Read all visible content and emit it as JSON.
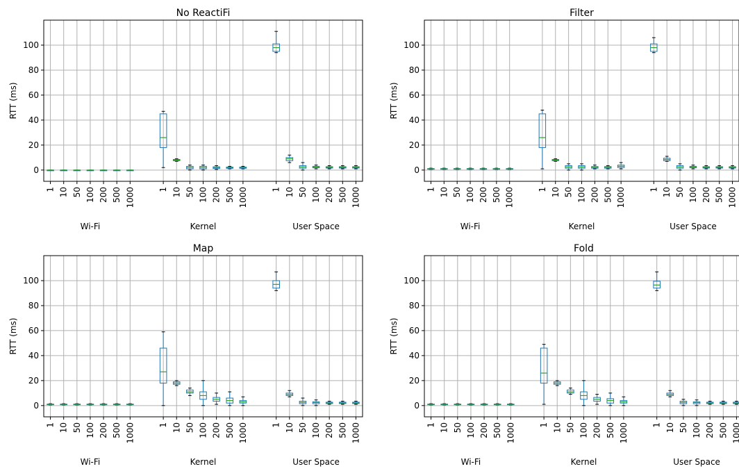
{
  "chart_data": [
    {
      "type": "box",
      "title": "No ReactiFi",
      "ylabel": "RTT (ms)",
      "ylim": [
        -9,
        120
      ],
      "yticks": [
        0,
        20,
        40,
        60,
        80,
        100
      ],
      "grid": true,
      "categories": [
        "1",
        "10",
        "50",
        "100",
        "200",
        "500",
        "1000",
        "1",
        "10",
        "50",
        "100",
        "200",
        "500",
        "1000",
        "1",
        "10",
        "50",
        "100",
        "200",
        "500",
        "1000"
      ],
      "groups": [
        {
          "label": "Wi-Fi",
          "start": 0,
          "end": 6
        },
        {
          "label": "Kernel",
          "start": 7,
          "end": 13
        },
        {
          "label": "User Space",
          "start": 14,
          "end": 20
        }
      ],
      "boxes": [
        {
          "min": 0,
          "q1": 0,
          "median": 0,
          "q3": 0,
          "max": 0
        },
        {
          "min": 0,
          "q1": 0,
          "median": 0,
          "q3": 0,
          "max": 0
        },
        {
          "min": 0,
          "q1": 0,
          "median": 0,
          "q3": 0,
          "max": 0
        },
        {
          "min": 0,
          "q1": 0,
          "median": 0,
          "q3": 0,
          "max": 0
        },
        {
          "min": 0,
          "q1": 0,
          "median": 0,
          "q3": 0,
          "max": 0
        },
        {
          "min": 0,
          "q1": 0,
          "median": 0,
          "q3": 0,
          "max": 0
        },
        {
          "min": 0,
          "q1": 0,
          "median": 0,
          "q3": 0,
          "max": 0
        },
        {
          "min": 2,
          "q1": 18,
          "median": 26,
          "q3": 45,
          "max": 47
        },
        {
          "min": 7,
          "q1": 7.5,
          "median": 8,
          "q3": 8.5,
          "max": 9
        },
        {
          "min": 0,
          "q1": 1,
          "median": 2,
          "q3": 3,
          "max": 4
        },
        {
          "min": 0,
          "q1": 1,
          "median": 2,
          "q3": 3,
          "max": 4
        },
        {
          "min": 0.5,
          "q1": 1.2,
          "median": 2,
          "q3": 2.6,
          "max": 3.5
        },
        {
          "min": 1,
          "q1": 1.4,
          "median": 2,
          "q3": 2.4,
          "max": 3
        },
        {
          "min": 1,
          "q1": 1.4,
          "median": 2,
          "q3": 2.4,
          "max": 3
        },
        {
          "min": 94,
          "q1": 95,
          "median": 98,
          "q3": 101,
          "max": 111
        },
        {
          "min": 6,
          "q1": 7.5,
          "median": 9,
          "q3": 10,
          "max": 12
        },
        {
          "min": 0,
          "q1": 1.5,
          "median": 2.5,
          "q3": 3.5,
          "max": 6
        },
        {
          "min": 1,
          "q1": 1.8,
          "median": 2.5,
          "q3": 3,
          "max": 4
        },
        {
          "min": 1,
          "q1": 1.6,
          "median": 2.2,
          "q3": 2.7,
          "max": 3.5
        },
        {
          "min": 1,
          "q1": 1.6,
          "median": 2.2,
          "q3": 2.7,
          "max": 3.5
        },
        {
          "min": 1,
          "q1": 1.6,
          "median": 2.2,
          "q3": 2.7,
          "max": 3.5
        }
      ]
    },
    {
      "type": "box",
      "title": "Filter",
      "ylabel": "RTT (ms)",
      "ylim": [
        -9,
        120
      ],
      "yticks": [
        0,
        20,
        40,
        60,
        80,
        100
      ],
      "grid": true,
      "categories": [
        "1",
        "10",
        "50",
        "100",
        "200",
        "500",
        "1000",
        "1",
        "10",
        "50",
        "100",
        "200",
        "500",
        "1000",
        "1",
        "10",
        "50",
        "100",
        "200",
        "500",
        "1000"
      ],
      "groups": [
        {
          "label": "Wi-Fi",
          "start": 0,
          "end": 6
        },
        {
          "label": "Kernel",
          "start": 7,
          "end": 13
        },
        {
          "label": "User Space",
          "start": 14,
          "end": 20
        }
      ],
      "boxes": [
        {
          "min": 0.5,
          "q1": 0.8,
          "median": 1,
          "q3": 1.2,
          "max": 1.5
        },
        {
          "min": 0.5,
          "q1": 0.8,
          "median": 1,
          "q3": 1.2,
          "max": 1.5
        },
        {
          "min": 0.5,
          "q1": 0.8,
          "median": 1,
          "q3": 1.2,
          "max": 1.5
        },
        {
          "min": 0.5,
          "q1": 0.8,
          "median": 1,
          "q3": 1.2,
          "max": 1.5
        },
        {
          "min": 0.5,
          "q1": 0.8,
          "median": 1,
          "q3": 1.2,
          "max": 1.5
        },
        {
          "min": 0.5,
          "q1": 0.8,
          "median": 1,
          "q3": 1.2,
          "max": 1.5
        },
        {
          "min": 0.5,
          "q1": 0.8,
          "median": 1,
          "q3": 1.2,
          "max": 1.5
        },
        {
          "min": 1,
          "q1": 18,
          "median": 26,
          "q3": 45,
          "max": 48
        },
        {
          "min": 7,
          "q1": 7.5,
          "median": 8,
          "q3": 8.5,
          "max": 9
        },
        {
          "min": 0,
          "q1": 1.5,
          "median": 2.5,
          "q3": 3.5,
          "max": 5
        },
        {
          "min": 0,
          "q1": 1.5,
          "median": 2.5,
          "q3": 3.5,
          "max": 5
        },
        {
          "min": 1,
          "q1": 1.5,
          "median": 2.2,
          "q3": 2.8,
          "max": 4
        },
        {
          "min": 1,
          "q1": 1.5,
          "median": 2.2,
          "q3": 2.8,
          "max": 3.5
        },
        {
          "min": 1,
          "q1": 2,
          "median": 3,
          "q3": 4,
          "max": 6
        },
        {
          "min": 94,
          "q1": 95,
          "median": 98,
          "q3": 101,
          "max": 106
        },
        {
          "min": 7,
          "q1": 7.5,
          "median": 8.5,
          "q3": 9.5,
          "max": 11
        },
        {
          "min": 0,
          "q1": 1.5,
          "median": 2.5,
          "q3": 3.5,
          "max": 5
        },
        {
          "min": 1,
          "q1": 1.8,
          "median": 2.5,
          "q3": 3,
          "max": 4
        },
        {
          "min": 1,
          "q1": 1.6,
          "median": 2.2,
          "q3": 2.7,
          "max": 3.5
        },
        {
          "min": 1,
          "q1": 1.6,
          "median": 2.2,
          "q3": 2.7,
          "max": 3.5
        },
        {
          "min": 1,
          "q1": 1.6,
          "median": 2.2,
          "q3": 2.7,
          "max": 3.5
        }
      ]
    },
    {
      "type": "box",
      "title": "Map",
      "ylabel": "RTT (ms)",
      "ylim": [
        -9,
        120
      ],
      "yticks": [
        0,
        20,
        40,
        60,
        80,
        100
      ],
      "grid": true,
      "categories": [
        "1",
        "10",
        "50",
        "100",
        "200",
        "500",
        "1000",
        "1",
        "10",
        "50",
        "100",
        "200",
        "500",
        "1000",
        "1",
        "10",
        "50",
        "100",
        "200",
        "500",
        "1000"
      ],
      "groups": [
        {
          "label": "Wi-Fi",
          "start": 0,
          "end": 6
        },
        {
          "label": "Kernel",
          "start": 7,
          "end": 13
        },
        {
          "label": "User Space",
          "start": 14,
          "end": 20
        }
      ],
      "boxes": [
        {
          "min": 0.5,
          "q1": 0.8,
          "median": 1,
          "q3": 1.2,
          "max": 1.5
        },
        {
          "min": 0.5,
          "q1": 0.8,
          "median": 1,
          "q3": 1.2,
          "max": 1.5
        },
        {
          "min": 0.5,
          "q1": 0.8,
          "median": 1,
          "q3": 1.2,
          "max": 1.5
        },
        {
          "min": 0.5,
          "q1": 0.8,
          "median": 1,
          "q3": 1.2,
          "max": 1.5
        },
        {
          "min": 0.5,
          "q1": 0.8,
          "median": 1,
          "q3": 1.2,
          "max": 1.5
        },
        {
          "min": 0.5,
          "q1": 0.8,
          "median": 1,
          "q3": 1.2,
          "max": 1.5
        },
        {
          "min": 0.5,
          "q1": 0.8,
          "median": 1,
          "q3": 1.2,
          "max": 1.5
        },
        {
          "min": 0,
          "q1": 18,
          "median": 27,
          "q3": 46,
          "max": 59
        },
        {
          "min": 16,
          "q1": 17,
          "median": 18,
          "q3": 19,
          "max": 20
        },
        {
          "min": 8,
          "q1": 10,
          "median": 11,
          "q3": 12.5,
          "max": 14
        },
        {
          "min": 0,
          "q1": 5,
          "median": 8,
          "q3": 11,
          "max": 20
        },
        {
          "min": 1,
          "q1": 3.5,
          "median": 5,
          "q3": 6.5,
          "max": 10
        },
        {
          "min": 0,
          "q1": 2,
          "median": 4,
          "q3": 6,
          "max": 11
        },
        {
          "min": 0,
          "q1": 2,
          "median": 3,
          "q3": 4,
          "max": 7
        },
        {
          "min": 92,
          "q1": 94,
          "median": 97,
          "q3": 100,
          "max": 107
        },
        {
          "min": 7,
          "q1": 8,
          "median": 9,
          "q3": 10,
          "max": 12
        },
        {
          "min": 0,
          "q1": 1.5,
          "median": 2.5,
          "q3": 3.5,
          "max": 6
        },
        {
          "min": 0,
          "q1": 1.5,
          "median": 2.5,
          "q3": 3,
          "max": 4.5
        },
        {
          "min": 1,
          "q1": 1.6,
          "median": 2.2,
          "q3": 2.7,
          "max": 3.5
        },
        {
          "min": 1,
          "q1": 1.6,
          "median": 2.2,
          "q3": 2.7,
          "max": 3.5
        },
        {
          "min": 1,
          "q1": 1.6,
          "median": 2.2,
          "q3": 2.7,
          "max": 3.5
        }
      ]
    },
    {
      "type": "box",
      "title": "Fold",
      "ylabel": "RTT (ms)",
      "ylim": [
        -9,
        120
      ],
      "yticks": [
        0,
        20,
        40,
        60,
        80,
        100
      ],
      "grid": true,
      "categories": [
        "1",
        "10",
        "50",
        "100",
        "200",
        "500",
        "1000",
        "1",
        "10",
        "50",
        "100",
        "200",
        "500",
        "1000",
        "1",
        "10",
        "50",
        "100",
        "200",
        "500",
        "1000"
      ],
      "groups": [
        {
          "label": "Wi-Fi",
          "start": 0,
          "end": 6
        },
        {
          "label": "Kernel",
          "start": 7,
          "end": 13
        },
        {
          "label": "User Space",
          "start": 14,
          "end": 20
        }
      ],
      "boxes": [
        {
          "min": 0.5,
          "q1": 0.8,
          "median": 1,
          "q3": 1.2,
          "max": 1.5
        },
        {
          "min": 0.5,
          "q1": 0.8,
          "median": 1,
          "q3": 1.2,
          "max": 1.5
        },
        {
          "min": 0.5,
          "q1": 0.8,
          "median": 1,
          "q3": 1.2,
          "max": 1.5
        },
        {
          "min": 0.5,
          "q1": 0.8,
          "median": 1,
          "q3": 1.2,
          "max": 1.5
        },
        {
          "min": 0.5,
          "q1": 0.8,
          "median": 1,
          "q3": 1.2,
          "max": 1.5
        },
        {
          "min": 0.5,
          "q1": 0.8,
          "median": 1,
          "q3": 1.2,
          "max": 1.5
        },
        {
          "min": 0.5,
          "q1": 0.8,
          "median": 1,
          "q3": 1.2,
          "max": 1.5
        },
        {
          "min": 1,
          "q1": 18,
          "median": 26,
          "q3": 46,
          "max": 49
        },
        {
          "min": 16,
          "q1": 17,
          "median": 18,
          "q3": 19,
          "max": 20
        },
        {
          "min": 9,
          "q1": 10,
          "median": 11,
          "q3": 12.5,
          "max": 14
        },
        {
          "min": 0,
          "q1": 5,
          "median": 8,
          "q3": 11,
          "max": 20
        },
        {
          "min": 1,
          "q1": 3.5,
          "median": 5,
          "q3": 6.5,
          "max": 9
        },
        {
          "min": 0,
          "q1": 2,
          "median": 4,
          "q3": 5.5,
          "max": 10
        },
        {
          "min": 0,
          "q1": 2,
          "median": 3,
          "q3": 4,
          "max": 7
        },
        {
          "min": 92,
          "q1": 94,
          "median": 96.5,
          "q3": 99.5,
          "max": 107
        },
        {
          "min": 7,
          "q1": 8,
          "median": 9,
          "q3": 10,
          "max": 12
        },
        {
          "min": 0,
          "q1": 1.5,
          "median": 2.5,
          "q3": 3.5,
          "max": 5
        },
        {
          "min": 0,
          "q1": 1.5,
          "median": 2.5,
          "q3": 3,
          "max": 4.5
        },
        {
          "min": 1,
          "q1": 1.6,
          "median": 2.2,
          "q3": 2.7,
          "max": 3.5
        },
        {
          "min": 1,
          "q1": 1.6,
          "median": 2.2,
          "q3": 2.7,
          "max": 3.5
        },
        {
          "min": 1,
          "q1": 1.6,
          "median": 2.2,
          "q3": 2.7,
          "max": 3.5
        }
      ]
    }
  ],
  "colors": {
    "box": "#1f77b4",
    "median": "#2ca02c",
    "grid": "#b0b0b0",
    "axis": "#000000"
  }
}
